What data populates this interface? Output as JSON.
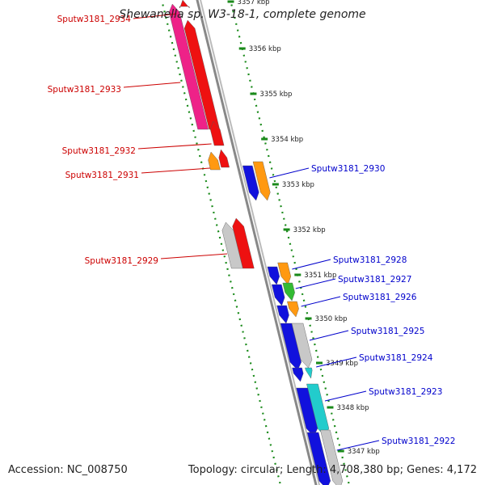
{
  "header": {
    "title": "Shewanella sp. W3-18-1, complete genome"
  },
  "footer": {
    "accession": "Accession: NC_008750",
    "summary": "Topology: circular; Length: 4,708,380 bp; Genes: 4,172"
  },
  "colors": {
    "forward_label": "#cc0000",
    "reverse_label": "#0000cc",
    "backbone": "#888888",
    "ticks": "#1a8a1a",
    "red": "#ee1111",
    "pink": "#ee2288",
    "blue": "#1111dd",
    "orange": "#ff9911",
    "green": "#33bb33",
    "gray": "#c8c8c8",
    "cyan": "#22cccc"
  },
  "kbp_marks": [
    "3357 kbp",
    "3356 kbp",
    "3355 kbp",
    "3354 kbp",
    "3353 kbp",
    "3352 kbp",
    "3351 kbp",
    "3350 kbp",
    "3349 kbp",
    "3348 kbp",
    "3347 kbp"
  ],
  "gene_labels": [
    {
      "text": "Sputw3181_2934",
      "strand": "forward"
    },
    {
      "text": "Sputw3181_2933",
      "strand": "forward"
    },
    {
      "text": "Sputw3181_2932",
      "strand": "forward"
    },
    {
      "text": "Sputw3181_2931",
      "strand": "forward"
    },
    {
      "text": "Sputw3181_2930",
      "strand": "reverse"
    },
    {
      "text": "Sputw3181_2929",
      "strand": "forward"
    },
    {
      "text": "Sputw3181_2928",
      "strand": "reverse"
    },
    {
      "text": "Sputw3181_2927",
      "strand": "reverse"
    },
    {
      "text": "Sputw3181_2926",
      "strand": "reverse"
    },
    {
      "text": "Sputw3181_2925",
      "strand": "reverse"
    },
    {
      "text": "Sputw3181_2924",
      "strand": "reverse"
    },
    {
      "text": "Sputw3181_2923",
      "strand": "reverse"
    },
    {
      "text": "Sputw3181_2922",
      "strand": "reverse"
    }
  ]
}
